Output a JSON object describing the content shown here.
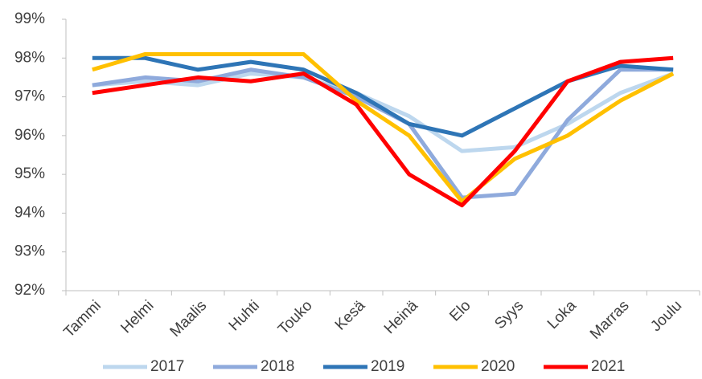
{
  "chart_data": {
    "type": "line",
    "categories": [
      "Tammi",
      "Helmi",
      "Maalis",
      "Huhti",
      "Touko",
      "Kesä",
      "Heinä",
      "Elo",
      "Syys",
      "Loka",
      "Marras",
      "Joulu"
    ],
    "series": [
      {
        "name": "2017",
        "color": "#bdd7ee",
        "values": [
          97.3,
          97.4,
          97.3,
          97.6,
          97.5,
          97.1,
          96.5,
          95.6,
          95.7,
          96.3,
          97.1,
          97.6
        ]
      },
      {
        "name": "2018",
        "color": "#8faadc",
        "values": [
          97.3,
          97.5,
          97.4,
          97.7,
          97.5,
          97.0,
          96.3,
          94.4,
          94.5,
          96.4,
          97.7,
          97.7
        ]
      },
      {
        "name": "2019",
        "color": "#2e75b6",
        "values": [
          98.0,
          98.0,
          97.7,
          97.9,
          97.7,
          97.1,
          96.3,
          96.0,
          96.7,
          97.4,
          97.8,
          97.7
        ]
      },
      {
        "name": "2020",
        "color": "#ffc000",
        "values": [
          97.7,
          98.1,
          98.1,
          98.1,
          98.1,
          96.9,
          96.0,
          94.3,
          95.4,
          96.0,
          96.9,
          97.6
        ]
      },
      {
        "name": "2021",
        "color": "#ff0000",
        "values": [
          97.1,
          97.3,
          97.5,
          97.4,
          97.6,
          96.8,
          95.0,
          94.2,
          95.6,
          97.4,
          97.9,
          98.0
        ]
      }
    ],
    "ylim": [
      92,
      99
    ],
    "yticks": [
      {
        "value": 92,
        "label": "92%"
      },
      {
        "value": 93,
        "label": "93%"
      },
      {
        "value": 94,
        "label": "94%"
      },
      {
        "value": 95,
        "label": "95%"
      },
      {
        "value": 96,
        "label": "96%"
      },
      {
        "value": 97,
        "label": "97%"
      },
      {
        "value": 98,
        "label": "98%"
      },
      {
        "value": 99,
        "label": "99%"
      }
    ],
    "grid": false,
    "legend": "bottom"
  }
}
